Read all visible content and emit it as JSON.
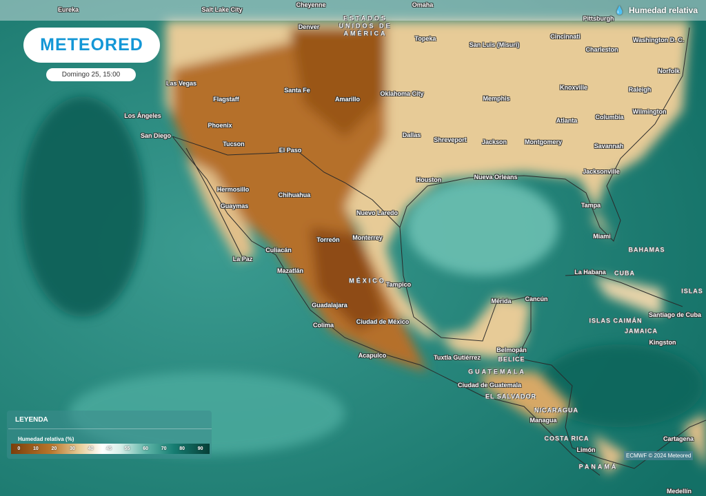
{
  "brand": {
    "logo_text": "METEORED",
    "date": "Domingo 25, 15:00"
  },
  "layer": {
    "title": "Humedad relativa",
    "icon": "droplet-icon"
  },
  "legend": {
    "title": "LEYENDA",
    "variable": "Humedad relativa (%)",
    "ticks": [
      "0",
      "10",
      "20",
      "30",
      "40",
      "45",
      "55",
      "60",
      "70",
      "80",
      "90"
    ],
    "colors": [
      "#7a3e0a",
      "#b8762c",
      "#e8cf9c",
      "#ffffff",
      "#5fb5a8",
      "#167d72",
      "#063f37"
    ]
  },
  "credit": "ECMWF © 2024 Meteored",
  "countries": [
    "ESTADOS UNIDOS DE AMÉRICA",
    "MÉXICO",
    "BAHAMAS",
    "CUBA",
    "ISLAS",
    "ISLAS CAIMÁN",
    "BELICE",
    "GUATEMALA",
    "EL SALVADOR",
    "NICARAGUA",
    "COSTA RICA",
    "PANAMÁ",
    "JAMAICA"
  ],
  "cities": [
    "Eureka",
    "Salt Lake City",
    "Cheyenne",
    "Omaha",
    "Pittsburgh",
    "Denver",
    "Topeka",
    "San Luis (Misuri)",
    "Cincinnati",
    "Washington D. C.",
    "Charleston",
    "Norfolk",
    "Las Vegas",
    "Santa Fe",
    "Amarillo",
    "Oklahoma City",
    "Memphis",
    "Knoxville",
    "Raleigh",
    "Flagstaff",
    "Los Ángeles",
    "Phoenix",
    "Atlanta",
    "Columbia",
    "Wilmington",
    "San Diego",
    "Dallas",
    "Shreveport",
    "Jackson",
    "Montgomery",
    "Savannah",
    "Tucson",
    "El Paso",
    "Jacksonville",
    "Houston",
    "Nueva Orleans",
    "Hermosillo",
    "Chihuahua",
    "Tampa",
    "Guaymas",
    "Nuevo Laredo",
    "Monterrey",
    "Torreón",
    "Miami",
    "Culiacán",
    "La Paz",
    "Mazatlán",
    "La Habana",
    "Tampico",
    "Mérida",
    "Cancún",
    "Guadalajara",
    "Santiago de Cuba",
    "Ciudad de México",
    "Colima",
    "Kingston",
    "Belmopán",
    "Acapulco",
    "Tuxtla Gutiérrez",
    "Ciudad de Guatemala",
    "Managua",
    "Cartagena",
    "Limón",
    "Medellín"
  ]
}
